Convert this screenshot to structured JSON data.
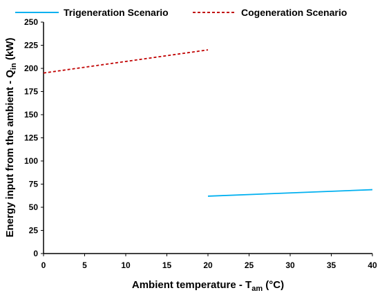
{
  "chart_data": {
    "type": "line",
    "title": "",
    "xlabel": {
      "main": "Ambient temperature - T",
      "sub": "am",
      "tail": " (°C)"
    },
    "ylabel": {
      "main": "Energy input from the ambient - Q",
      "sub": "in",
      "tail": " (kW)"
    },
    "xlim": [
      0,
      40
    ],
    "ylim": [
      0,
      250
    ],
    "x_ticks": [
      0,
      5,
      10,
      15,
      20,
      25,
      30,
      35,
      40
    ],
    "y_ticks": [
      0,
      25,
      50,
      75,
      100,
      125,
      150,
      175,
      200,
      225,
      250
    ],
    "grid": false,
    "legend_position": "top",
    "series": [
      {
        "name": "Trigeneration Scenario",
        "color": "#00b0f0",
        "style": "solid",
        "x": [
          20,
          40
        ],
        "y": [
          62,
          69
        ]
      },
      {
        "name": "Cogeneration Scenario",
        "color": "#c00000",
        "style": "dashed",
        "x": [
          0,
          20
        ],
        "y": [
          195,
          220
        ]
      }
    ]
  }
}
